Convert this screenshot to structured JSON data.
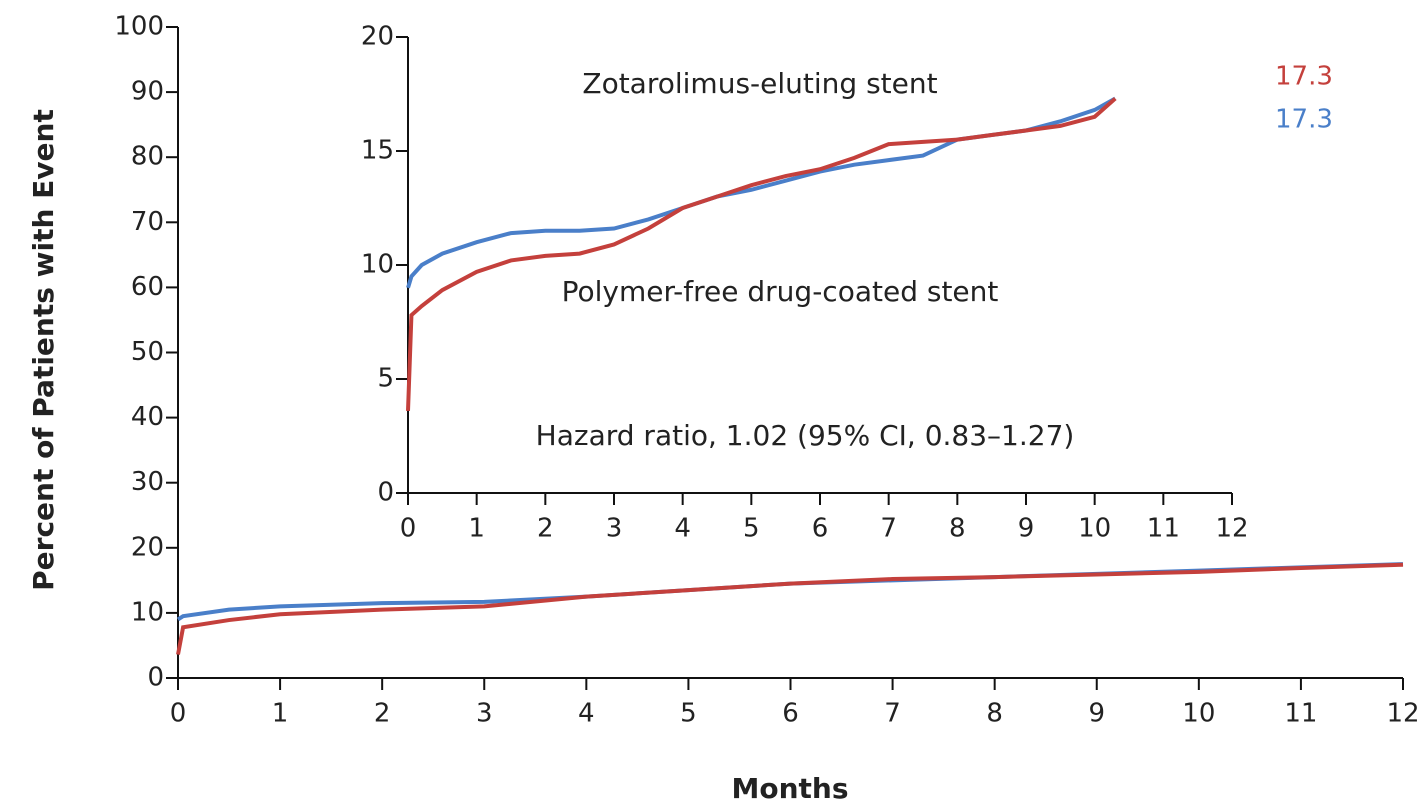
{
  "chart_data": [
    {
      "type": "line",
      "ylabel": "Percent of Patients with Event",
      "xlabel": "Months",
      "x": [
        0,
        0.05,
        0.5,
        1,
        2,
        3,
        4,
        5,
        6,
        7,
        8,
        9,
        10,
        11,
        12
      ],
      "series": [
        {
          "color": "#4a7fc9",
          "values": [
            9,
            9.5,
            10.5,
            11,
            11.5,
            11.7,
            12.5,
            13.5,
            14.5,
            15,
            15.5,
            16,
            16.5,
            17,
            17.5
          ]
        },
        {
          "color": "#c4403c",
          "values": [
            3.6,
            7.8,
            8.9,
            9.8,
            10.5,
            11,
            12.5,
            13.5,
            14.5,
            15.2,
            15.5,
            15.9,
            16.3,
            16.9,
            17.4
          ]
        }
      ],
      "xlim": [
        0,
        12
      ],
      "xticks": [
        0,
        1,
        2,
        3,
        4,
        5,
        6,
        7,
        8,
        9,
        10,
        11,
        12
      ],
      "ylim": [
        0,
        100
      ],
      "yticks": [
        0,
        10,
        20,
        30,
        40,
        50,
        60,
        70,
        80,
        90,
        100
      ]
    },
    {
      "type": "line",
      "x": [
        0,
        0.05,
        0.2,
        0.5,
        1,
        1.5,
        2,
        2.5,
        3,
        3.5,
        4,
        4.5,
        5,
        5.5,
        6,
        6.5,
        7,
        7.5,
        8,
        8.5,
        9,
        9.5,
        10,
        10.3
      ],
      "series": [
        {
          "name": "Zotarolimus-eluting stent",
          "color": "#4a7fc9",
          "final_value": 17.3,
          "values": [
            9.0,
            9.5,
            10.0,
            10.5,
            11.0,
            11.4,
            11.5,
            11.5,
            11.6,
            12.0,
            12.5,
            13.0,
            13.3,
            13.7,
            14.1,
            14.4,
            14.6,
            14.8,
            15.5,
            15.7,
            15.9,
            16.3,
            16.8,
            17.3
          ]
        },
        {
          "name": "Polymer-free drug-coated stent",
          "color": "#c4403c",
          "final_value": 17.3,
          "values": [
            3.6,
            7.8,
            8.2,
            8.9,
            9.7,
            10.2,
            10.4,
            10.5,
            10.9,
            11.6,
            12.5,
            13.0,
            13.5,
            13.9,
            14.2,
            14.7,
            15.3,
            15.4,
            15.5,
            15.7,
            15.9,
            16.1,
            16.5,
            17.3
          ]
        }
      ],
      "annotations": [
        "Hazard ratio, 1.02 (95% CI, 0.83–1.27)"
      ],
      "xlim": [
        0,
        12
      ],
      "xticks": [
        0,
        1,
        2,
        3,
        4,
        5,
        6,
        7,
        8,
        9,
        10,
        11,
        12
      ],
      "ylim": [
        0,
        20
      ],
      "yticks": [
        0,
        5,
        10,
        15,
        20
      ]
    }
  ]
}
